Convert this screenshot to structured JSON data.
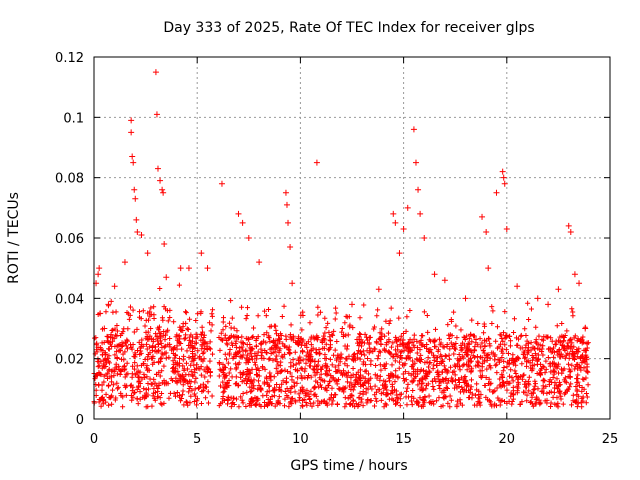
{
  "chart_data": {
    "type": "scatter",
    "title": "Day 333 of 2025, Rate Of TEC Index for receiver glps",
    "xlabel": "GPS time / hours",
    "ylabel": "ROTI / TECUs",
    "xlim": [
      0,
      25
    ],
    "ylim": [
      0,
      0.12
    ],
    "xticks": [
      "0",
      "5",
      "10",
      "15",
      "20",
      "25"
    ],
    "yticks": [
      "0",
      "0.02",
      "0.04",
      "0.06",
      "0.08",
      "0.1",
      "0.12"
    ],
    "grid": true,
    "marker": "+",
    "color": "#ff0000",
    "series": [
      {
        "name": "ROTI",
        "x": [
          0.1,
          0.2,
          0.25,
          0.3,
          0.5,
          0.7,
          1.0,
          1.5,
          1.8,
          1.8,
          1.85,
          1.9,
          1.95,
          2.0,
          2.05,
          2.1,
          2.3,
          2.6,
          3.0,
          3.05,
          3.1,
          3.2,
          3.3,
          3.35,
          3.4,
          3.5,
          4.2,
          4.6,
          5.2,
          5.5,
          6.2,
          7.0,
          7.2,
          7.5,
          8.0,
          9.3,
          9.35,
          9.4,
          9.5,
          9.6,
          10.8,
          12.5,
          13.8,
          14.5,
          14.6,
          14.8,
          15.0,
          15.2,
          15.5,
          15.6,
          15.7,
          15.8,
          16.0,
          16.5,
          17.0,
          18.0,
          18.8,
          19.0,
          19.1,
          19.5,
          19.8,
          19.85,
          19.9,
          20.0,
          20.5,
          21.5,
          22.0,
          22.5,
          23.0,
          23.1,
          23.3,
          23.5,
          23.8
        ],
        "y": [
          0.045,
          0.048,
          0.05,
          0.035,
          0.03,
          0.038,
          0.044,
          0.052,
          0.099,
          0.095,
          0.087,
          0.085,
          0.076,
          0.073,
          0.066,
          0.062,
          0.061,
          0.055,
          0.115,
          0.101,
          0.083,
          0.079,
          0.076,
          0.075,
          0.058,
          0.047,
          0.05,
          0.05,
          0.055,
          0.05,
          0.078,
          0.068,
          0.065,
          0.06,
          0.052,
          0.075,
          0.071,
          0.065,
          0.057,
          0.045,
          0.085,
          0.038,
          0.043,
          0.068,
          0.065,
          0.055,
          0.063,
          0.07,
          0.096,
          0.085,
          0.076,
          0.068,
          0.06,
          0.048,
          0.046,
          0.04,
          0.067,
          0.062,
          0.05,
          0.075,
          0.082,
          0.08,
          0.078,
          0.063,
          0.044,
          0.04,
          0.038,
          0.043,
          0.064,
          0.062,
          0.048,
          0.045,
          0.03
        ]
      }
    ]
  }
}
